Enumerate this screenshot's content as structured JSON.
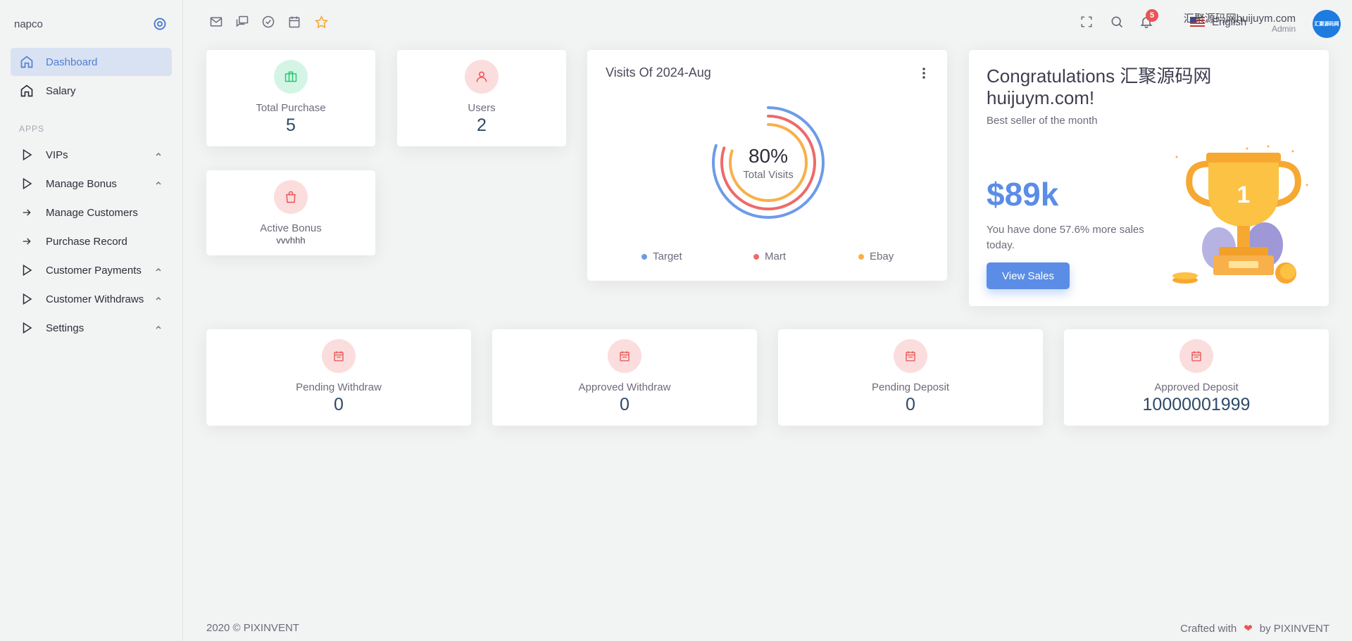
{
  "app": {
    "brand": "napco"
  },
  "sidebar": {
    "items": [
      {
        "label": "Dashboard",
        "icon": "home-icon",
        "active": true
      },
      {
        "label": "Salary",
        "icon": "home-icon"
      }
    ],
    "section_label": "APPS",
    "apps": [
      {
        "label": "VIPs",
        "icon": "play-icon",
        "expandable": true
      },
      {
        "label": "Manage Bonus",
        "icon": "play-icon",
        "expandable": true
      },
      {
        "label": "Manage Customers",
        "icon": "arrow-right-icon"
      },
      {
        "label": "Purchase Record",
        "icon": "arrow-right-icon"
      },
      {
        "label": "Customer Payments",
        "icon": "play-icon",
        "expandable": true
      },
      {
        "label": "Customer Withdraws",
        "icon": "play-icon",
        "expandable": true
      },
      {
        "label": "Settings",
        "icon": "play-icon",
        "expandable": true
      }
    ]
  },
  "topbar": {
    "shortcuts": [
      "mail-icon",
      "chat-icon",
      "check-circle-icon",
      "calendar-icon",
      "star-icon"
    ],
    "language": "English",
    "notifications_count": "5",
    "user_name": "汇聚源码网huijuym.com",
    "user_role": "Admin",
    "avatar_text": "汇聚源码网"
  },
  "stats": {
    "total_purchase": {
      "title": "Total Purchase",
      "value": "5"
    },
    "users": {
      "title": "Users",
      "value": "2"
    },
    "active_bonus": {
      "title": "Active Bonus",
      "value": "vvvhhh"
    },
    "pending_withdraw": {
      "title": "Pending Withdraw",
      "value": "0"
    },
    "approved_withdraw": {
      "title": "Approved Withdraw",
      "value": "0"
    },
    "pending_deposit": {
      "title": "Pending Deposit",
      "value": "0"
    },
    "approved_deposit": {
      "title": "Approved Deposit",
      "value": "10000001999"
    }
  },
  "visits": {
    "title": "Visits Of 2024-Aug",
    "center_value": "80%",
    "center_label": "Total Visits",
    "legend": [
      {
        "name": "Target",
        "color": "#6e9be8"
      },
      {
        "name": "Mart",
        "color": "#ee6a6a"
      },
      {
        "name": "Ebay",
        "color": "#f7b04a"
      }
    ]
  },
  "congrats": {
    "title": "Congratulations 汇聚源码网huijuym.com!",
    "subtitle": "Best seller of the month",
    "amount": "$89k",
    "text": "You have done 57.6% more sales today.",
    "button": "View Sales"
  },
  "footer": {
    "left": "2020 © PIXINVENT",
    "right_prefix": "Crafted with",
    "right_suffix": "by PIXINVENT"
  },
  "colors": {
    "accent": "#5b8de6",
    "success_bg": "#d4f5e6",
    "danger_bg": "#fbdddd",
    "danger": "#ea5455"
  }
}
